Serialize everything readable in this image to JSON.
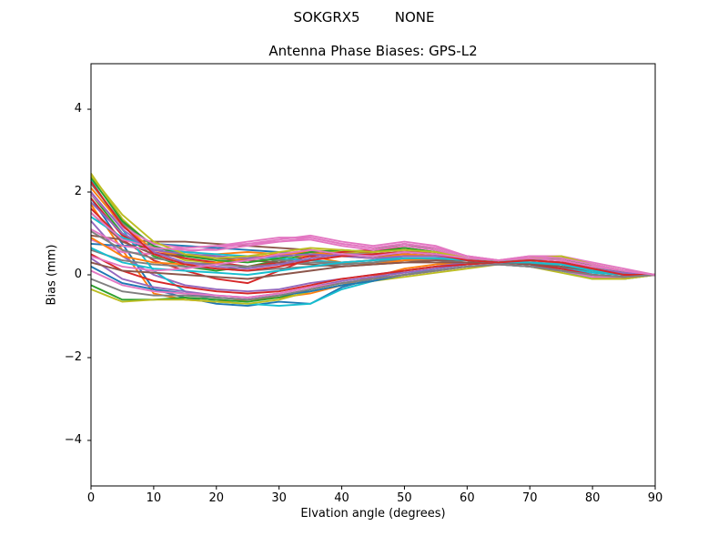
{
  "suptitle": "SOKGRX5        NONE",
  "chart_data": {
    "type": "line",
    "title": "Antenna Phase Biases: GPS-L2",
    "xlabel": "Elvation angle (degrees)",
    "ylabel": "Bias (mm)",
    "xlim": [
      0,
      90
    ],
    "ylim": [
      -5.1,
      5.1
    ],
    "grid": false,
    "legend": "none",
    "xticks": [
      0,
      10,
      20,
      30,
      40,
      50,
      60,
      70,
      80,
      90
    ],
    "yticks": [
      -4,
      -2,
      0,
      2,
      4
    ],
    "ytick_labels": [
      "−4",
      "−2",
      "0",
      "2",
      "4"
    ],
    "palette": [
      "#1f77b4",
      "#ff7f0e",
      "#2ca02c",
      "#d62728",
      "#9467bd",
      "#8c564b",
      "#e377c2",
      "#7f7f7f",
      "#bcbd22",
      "#17becf"
    ],
    "x": [
      0,
      5,
      10,
      15,
      20,
      25,
      30,
      35,
      40,
      45,
      50,
      55,
      60,
      65,
      70,
      75,
      80,
      85,
      90
    ],
    "series": [
      {
        "c": 0,
        "v": [
          1.85,
          0.75,
          -0.35,
          -0.55,
          -0.7,
          -0.75,
          -0.65,
          -0.7,
          -0.3,
          -0.1,
          0.1,
          0.2,
          0.3,
          0.35,
          0.3,
          0.2,
          0.0,
          -0.05,
          0.0
        ]
      },
      {
        "c": 1,
        "v": [
          1.7,
          0.6,
          -0.45,
          -0.6,
          -0.65,
          -0.6,
          -0.55,
          -0.45,
          -0.25,
          -0.05,
          0.15,
          0.25,
          0.3,
          0.3,
          0.25,
          0.1,
          -0.05,
          -0.1,
          0.0
        ]
      },
      {
        "c": 2,
        "v": [
          1.95,
          1.0,
          0.45,
          0.2,
          0.1,
          0.2,
          0.35,
          0.5,
          0.55,
          0.6,
          0.75,
          0.6,
          0.4,
          0.3,
          0.4,
          0.45,
          0.2,
          0.05,
          0.0
        ]
      },
      {
        "c": 3,
        "v": [
          1.6,
          0.85,
          0.35,
          0.1,
          -0.1,
          -0.2,
          0.1,
          0.4,
          0.5,
          0.55,
          0.6,
          0.5,
          0.35,
          0.3,
          0.35,
          0.3,
          0.1,
          0.0,
          0.0
        ]
      },
      {
        "c": 4,
        "v": [
          1.3,
          0.45,
          0.0,
          -0.25,
          -0.35,
          -0.4,
          -0.35,
          -0.2,
          -0.1,
          0.0,
          0.1,
          0.2,
          0.3,
          0.3,
          0.25,
          0.15,
          0.05,
          0.0,
          0.0
        ]
      },
      {
        "c": 5,
        "v": [
          0.95,
          0.85,
          0.8,
          0.8,
          0.75,
          0.7,
          0.65,
          0.6,
          0.5,
          0.45,
          0.5,
          0.45,
          0.4,
          0.35,
          0.35,
          0.3,
          0.2,
          0.1,
          0.0
        ]
      },
      {
        "c": 6,
        "v": [
          0.85,
          0.55,
          0.5,
          0.55,
          0.65,
          0.75,
          0.85,
          0.95,
          0.8,
          0.7,
          0.8,
          0.7,
          0.45,
          0.35,
          0.45,
          0.45,
          0.3,
          0.15,
          0.0
        ]
      },
      {
        "c": 7,
        "v": [
          0.6,
          0.35,
          0.25,
          0.2,
          0.15,
          0.1,
          0.15,
          0.2,
          0.25,
          0.3,
          0.35,
          0.35,
          0.3,
          0.3,
          0.3,
          0.25,
          0.15,
          0.05,
          0.0
        ]
      },
      {
        "c": 8,
        "v": [
          2.45,
          1.35,
          0.65,
          0.35,
          0.3,
          0.4,
          0.5,
          0.6,
          0.55,
          0.5,
          0.55,
          0.5,
          0.4,
          0.3,
          0.35,
          0.4,
          0.25,
          0.1,
          0.0
        ]
      },
      {
        "c": 9,
        "v": [
          2.3,
          1.1,
          0.1,
          -0.4,
          -0.65,
          -0.7,
          -0.75,
          -0.7,
          -0.35,
          -0.15,
          0.0,
          0.15,
          0.25,
          0.3,
          0.25,
          0.1,
          -0.1,
          -0.1,
          0.0
        ]
      },
      {
        "c": 0,
        "v": [
          0.75,
          0.7,
          0.75,
          0.7,
          0.65,
          0.6,
          0.55,
          0.5,
          0.45,
          0.5,
          0.55,
          0.5,
          0.4,
          0.35,
          0.3,
          0.25,
          0.1,
          0.0,
          0.0
        ]
      },
      {
        "c": 1,
        "v": [
          2.1,
          1.2,
          0.6,
          0.45,
          0.5,
          0.55,
          0.5,
          0.45,
          0.3,
          0.25,
          0.35,
          0.4,
          0.35,
          0.3,
          0.35,
          0.3,
          0.15,
          0.05,
          0.0
        ]
      },
      {
        "c": 2,
        "v": [
          -0.25,
          -0.6,
          -0.6,
          -0.55,
          -0.6,
          -0.65,
          -0.55,
          -0.35,
          -0.2,
          -0.1,
          0.0,
          0.1,
          0.2,
          0.25,
          0.2,
          0.1,
          0.0,
          -0.05,
          0.0
        ]
      },
      {
        "c": 3,
        "v": [
          1.85,
          0.95,
          0.55,
          0.4,
          0.3,
          0.2,
          0.3,
          0.45,
          0.55,
          0.6,
          0.65,
          0.55,
          0.4,
          0.35,
          0.4,
          0.35,
          0.15,
          0.05,
          0.0
        ]
      },
      {
        "c": 4,
        "v": [
          0.4,
          -0.1,
          -0.3,
          -0.4,
          -0.5,
          -0.55,
          -0.45,
          -0.3,
          -0.15,
          -0.05,
          0.05,
          0.15,
          0.25,
          0.3,
          0.25,
          0.15,
          0.0,
          -0.05,
          0.0
        ]
      },
      {
        "c": 5,
        "v": [
          1.5,
          0.8,
          0.5,
          0.45,
          0.4,
          0.35,
          0.3,
          0.25,
          0.2,
          0.25,
          0.3,
          0.35,
          0.35,
          0.3,
          0.3,
          0.25,
          0.1,
          0.0,
          0.0
        ]
      },
      {
        "c": 6,
        "v": [
          1.1,
          0.7,
          0.6,
          0.65,
          0.7,
          0.8,
          0.9,
          0.9,
          0.75,
          0.65,
          0.75,
          0.65,
          0.45,
          0.35,
          0.4,
          0.4,
          0.25,
          0.1,
          0.0
        ]
      },
      {
        "c": 7,
        "v": [
          2.2,
          1.25,
          0.7,
          0.5,
          0.45,
          0.4,
          0.35,
          0.3,
          0.25,
          0.3,
          0.4,
          0.4,
          0.35,
          0.3,
          0.3,
          0.25,
          0.15,
          0.05,
          0.0
        ]
      },
      {
        "c": 8,
        "v": [
          -0.35,
          -0.65,
          -0.6,
          -0.6,
          -0.65,
          -0.7,
          -0.6,
          -0.4,
          -0.25,
          -0.15,
          -0.05,
          0.05,
          0.15,
          0.25,
          0.2,
          0.05,
          -0.1,
          -0.1,
          0.0
        ]
      },
      {
        "c": 9,
        "v": [
          1.4,
          0.9,
          0.65,
          0.55,
          0.5,
          0.45,
          0.4,
          0.35,
          0.3,
          0.35,
          0.45,
          0.45,
          0.4,
          0.35,
          0.3,
          0.2,
          0.05,
          0.0,
          0.0
        ]
      },
      {
        "c": 0,
        "v": [
          0.2,
          -0.2,
          -0.35,
          -0.45,
          -0.55,
          -0.6,
          -0.5,
          -0.4,
          -0.25,
          -0.15,
          0.0,
          0.1,
          0.2,
          0.25,
          0.2,
          0.1,
          -0.05,
          -0.05,
          0.0
        ]
      },
      {
        "c": 1,
        "v": [
          0.9,
          0.45,
          0.3,
          0.25,
          0.3,
          0.4,
          0.5,
          0.55,
          0.45,
          0.4,
          0.5,
          0.45,
          0.35,
          0.3,
          0.35,
          0.3,
          0.15,
          0.05,
          0.0
        ]
      },
      {
        "c": 2,
        "v": [
          2.35,
          1.3,
          0.7,
          0.45,
          0.35,
          0.3,
          0.4,
          0.55,
          0.6,
          0.55,
          0.65,
          0.55,
          0.4,
          0.3,
          0.35,
          0.4,
          0.2,
          0.05,
          0.0
        ]
      },
      {
        "c": 3,
        "v": [
          0.5,
          0.1,
          -0.15,
          -0.3,
          -0.4,
          -0.45,
          -0.4,
          -0.25,
          -0.1,
          0.0,
          0.1,
          0.2,
          0.25,
          0.3,
          0.25,
          0.15,
          0.0,
          -0.05,
          0.0
        ]
      },
      {
        "c": 4,
        "v": [
          1.75,
          1.0,
          0.6,
          0.5,
          0.45,
          0.4,
          0.45,
          0.5,
          0.45,
          0.4,
          0.45,
          0.45,
          0.35,
          0.3,
          0.3,
          0.25,
          0.1,
          0.0,
          0.0
        ]
      },
      {
        "c": 5,
        "v": [
          0.3,
          0.1,
          0.05,
          0.0,
          -0.05,
          -0.1,
          0.0,
          0.1,
          0.2,
          0.25,
          0.3,
          0.3,
          0.3,
          0.3,
          0.25,
          0.2,
          0.1,
          0.0,
          0.0
        ]
      },
      {
        "c": 6,
        "v": [
          1.95,
          1.15,
          0.75,
          0.65,
          0.7,
          0.75,
          0.8,
          0.85,
          0.7,
          0.6,
          0.7,
          0.6,
          0.4,
          0.35,
          0.4,
          0.35,
          0.2,
          0.1,
          0.0
        ]
      },
      {
        "c": 7,
        "v": [
          1.05,
          0.6,
          0.4,
          0.3,
          0.25,
          0.2,
          0.25,
          0.3,
          0.3,
          0.35,
          0.4,
          0.4,
          0.35,
          0.3,
          0.3,
          0.25,
          0.1,
          0.0,
          0.0
        ]
      },
      {
        "c": 8,
        "v": [
          2.4,
          1.45,
          0.8,
          0.5,
          0.4,
          0.45,
          0.55,
          0.65,
          0.6,
          0.55,
          0.6,
          0.55,
          0.4,
          0.35,
          0.4,
          0.45,
          0.25,
          0.1,
          0.0
        ]
      },
      {
        "c": 9,
        "v": [
          0.65,
          0.3,
          0.15,
          0.1,
          0.05,
          0.0,
          0.1,
          0.2,
          0.3,
          0.35,
          0.4,
          0.4,
          0.35,
          0.3,
          0.3,
          0.25,
          0.1,
          0.0,
          0.0
        ]
      },
      {
        "c": 6,
        "v": [
          0.1,
          -0.25,
          -0.4,
          -0.45,
          -0.5,
          -0.55,
          -0.45,
          -0.3,
          -0.2,
          -0.1,
          0.0,
          0.1,
          0.2,
          0.25,
          0.2,
          0.1,
          -0.05,
          -0.05,
          0.0
        ]
      },
      {
        "c": 4,
        "v": [
          2.0,
          1.1,
          0.55,
          0.3,
          0.2,
          0.15,
          0.25,
          0.4,
          0.5,
          0.5,
          0.55,
          0.5,
          0.35,
          0.3,
          0.35,
          0.3,
          0.15,
          0.05,
          0.0
        ]
      },
      {
        "c": 6,
        "v": [
          1.5,
          0.85,
          0.65,
          0.6,
          0.6,
          0.7,
          0.8,
          0.9,
          0.75,
          0.65,
          0.75,
          0.65,
          0.45,
          0.35,
          0.45,
          0.4,
          0.25,
          0.1,
          0.0
        ]
      },
      {
        "c": 3,
        "v": [
          2.25,
          1.2,
          0.5,
          0.25,
          0.15,
          0.1,
          0.2,
          0.35,
          0.45,
          0.5,
          0.55,
          0.5,
          0.35,
          0.3,
          0.35,
          0.3,
          0.15,
          0.0,
          0.0
        ]
      },
      {
        "c": 7,
        "v": [
          -0.1,
          -0.4,
          -0.5,
          -0.5,
          -0.55,
          -0.6,
          -0.5,
          -0.35,
          -0.2,
          -0.1,
          0.0,
          0.1,
          0.2,
          0.25,
          0.2,
          0.1,
          0.0,
          -0.05,
          0.0
        ]
      },
      {
        "c": 6,
        "v": [
          0.45,
          0.2,
          0.1,
          0.15,
          0.25,
          0.35,
          0.5,
          0.6,
          0.5,
          0.45,
          0.55,
          0.5,
          0.4,
          0.35,
          0.4,
          0.35,
          0.2,
          0.1,
          0.0
        ]
      }
    ]
  }
}
